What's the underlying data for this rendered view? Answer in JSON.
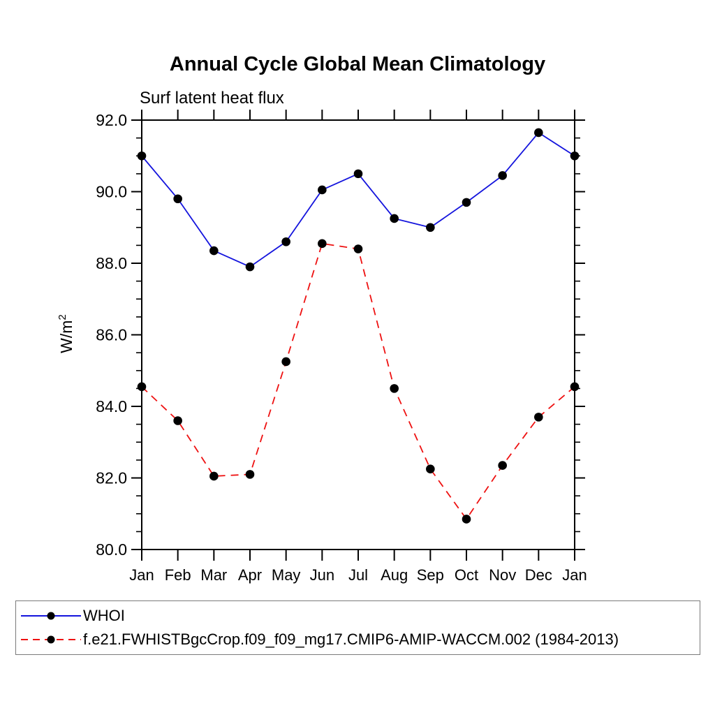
{
  "chart_data": {
    "type": "line",
    "title": "Annual Cycle Global Mean Climatology",
    "subtitle": "Surf latent heat flux",
    "ylabel": "W/m²",
    "ylabel_base": "W/m",
    "ylabel_sup": "2",
    "categories": [
      "Jan",
      "Feb",
      "Mar",
      "Apr",
      "May",
      "Jun",
      "Jul",
      "Aug",
      "Sep",
      "Oct",
      "Nov",
      "Dec",
      "Jan"
    ],
    "ylim": [
      80.0,
      92.0
    ],
    "ytick_interval": 2.0,
    "ytick_minor_interval": 0.5,
    "ytick_labels": [
      "80.0",
      "82.0",
      "84.0",
      "86.0",
      "88.0",
      "90.0",
      "92.0"
    ],
    "grid": false,
    "legend_position": "bottom",
    "axis_color": "#000000",
    "marker_color": "#000000",
    "series": [
      {
        "name": "WHOI",
        "color": "#1414dd",
        "style": "solid",
        "values": [
          91.0,
          89.8,
          88.35,
          87.9,
          88.6,
          90.05,
          90.5,
          89.25,
          89.0,
          89.7,
          90.45,
          91.65,
          91.0
        ]
      },
      {
        "name": "f.e21.FWHISTBgcCrop.f09_f09_mg17.CMIP6-AMIP-WACCM.002 (1984-2013)",
        "color": "#ee1111",
        "style": "dashed",
        "values": [
          84.55,
          83.6,
          82.05,
          82.1,
          85.25,
          88.55,
          88.4,
          84.5,
          82.25,
          80.85,
          82.35,
          83.7,
          84.55
        ]
      }
    ]
  }
}
